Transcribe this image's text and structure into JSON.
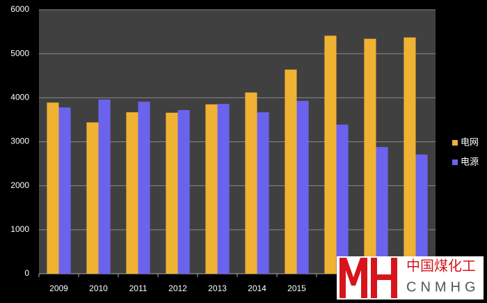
{
  "chart_data": {
    "type": "bar",
    "categories": [
      "2009",
      "2010",
      "2011",
      "2012",
      "2013",
      "2014",
      "2015",
      null,
      null,
      null
    ],
    "series": [
      {
        "name": "电网",
        "color": "#f0b232",
        "values": [
          3890,
          3440,
          3670,
          3660,
          3850,
          4120,
          4640,
          5410,
          5340,
          5370
        ]
      },
      {
        "name": "电源",
        "color": "#6b63ee",
        "values": [
          3780,
          3960,
          3910,
          3720,
          3860,
          3670,
          3930,
          3390,
          2880,
          2710
        ]
      }
    ],
    "ylim": [
      0,
      6000
    ],
    "yticks": [
      0,
      1000,
      2000,
      3000,
      4000,
      5000,
      6000
    ],
    "grid": true,
    "legend": "right"
  },
  "watermark": {
    "text": "中国煤化工",
    "subtext": "CNMHG"
  }
}
